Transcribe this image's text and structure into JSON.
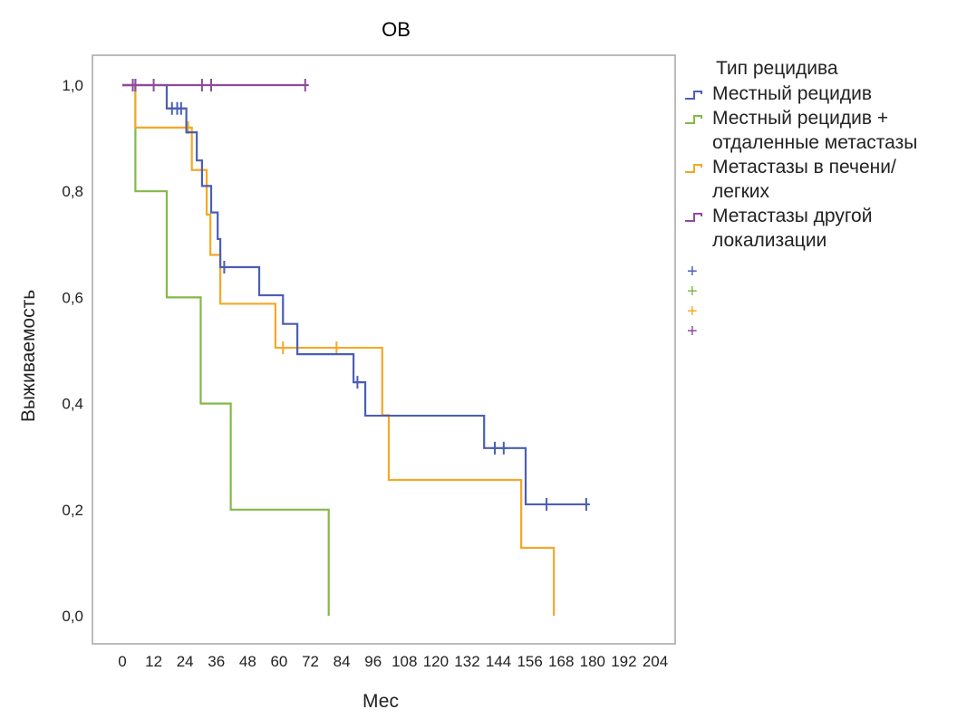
{
  "chart_data": {
    "type": "line",
    "subtype": "kaplan-meier",
    "title": "ОВ",
    "xlabel": "Мес",
    "ylabel": "Выживаемость",
    "xlim": [
      0,
      204
    ],
    "ylim": [
      0,
      1
    ],
    "x_ticks": [
      0,
      12,
      24,
      36,
      48,
      60,
      72,
      84,
      96,
      108,
      120,
      132,
      144,
      156,
      168,
      180,
      192,
      204
    ],
    "x_tick_labels": [
      "0",
      "12",
      "24",
      "36",
      "48",
      "60",
      "72",
      "84",
      "96",
      "108",
      "120",
      "132",
      "144",
      "156",
      "168",
      "180",
      "192",
      "204"
    ],
    "y_ticks": [
      0,
      0.2,
      0.4,
      0.6,
      0.8,
      1.0
    ],
    "y_tick_labels": [
      "0,0",
      "0,2",
      "0,4",
      "0,6",
      "0,8",
      "1,0"
    ],
    "grid": false,
    "legend_title": "Тип рецидива",
    "legend_placement": "right",
    "series": [
      {
        "name": "Местный рецидив",
        "color": "#4a5fb4",
        "steps": [
          [
            0,
            1.0
          ],
          [
            17,
            0.956
          ],
          [
            24.5,
            0.911
          ],
          [
            28.5,
            0.858
          ],
          [
            30.5,
            0.81
          ],
          [
            34,
            0.76
          ],
          [
            36.5,
            0.71
          ],
          [
            37.5,
            0.657
          ],
          [
            52.4,
            0.604
          ],
          [
            61.5,
            0.55
          ],
          [
            67,
            0.493
          ],
          [
            88.5,
            0.44
          ],
          [
            93,
            0.377
          ],
          [
            138.5,
            0.316
          ],
          [
            154.4,
            0.21
          ]
        ],
        "end": 178.5,
        "censored": [
          [
            4,
            1.0
          ],
          [
            5,
            1.0
          ],
          [
            19,
            0.956
          ],
          [
            21,
            0.956
          ],
          [
            22.5,
            0.956
          ],
          [
            39,
            0.657
          ],
          [
            90,
            0.44
          ],
          [
            142.6,
            0.316
          ],
          [
            146,
            0.316
          ],
          [
            162.4,
            0.21
          ],
          [
            177.6,
            0.21
          ]
        ]
      },
      {
        "name": "Местный рецидив +\nотдаленные метастазы",
        "color": "#82b94a",
        "steps": [
          [
            0,
            1.0
          ],
          [
            5,
            0.8
          ],
          [
            17,
            0.6
          ],
          [
            30,
            0.4
          ],
          [
            41.5,
            0.2
          ],
          [
            79,
            0.0
          ]
        ],
        "end": 79,
        "censored": []
      },
      {
        "name": "Метастазы в печени/\nлегких",
        "color": "#f4a827",
        "steps": [
          [
            0,
            1.0
          ],
          [
            5,
            0.92
          ],
          [
            26.6,
            0.84
          ],
          [
            32.3,
            0.756
          ],
          [
            33.7,
            0.68
          ],
          [
            37.5,
            0.588
          ],
          [
            58.6,
            0.505
          ],
          [
            99.5,
            0.378
          ],
          [
            102,
            0.256
          ],
          [
            152.7,
            0.128
          ],
          [
            165.2,
            0.0
          ]
        ],
        "end": 165.2,
        "censored": [
          [
            25.2,
            0.92
          ],
          [
            61.5,
            0.505
          ],
          [
            82,
            0.505
          ]
        ]
      },
      {
        "name": "Метастазы другой\nлокализации",
        "color": "#8e4a9c",
        "steps": [
          [
            0,
            1.0
          ]
        ],
        "end": 70,
        "censored": [
          [
            4,
            1.0
          ],
          [
            5,
            1.0
          ],
          [
            12,
            1.0
          ],
          [
            30.5,
            1.0
          ],
          [
            34,
            1.0
          ],
          [
            70,
            1.0
          ]
        ]
      }
    ]
  }
}
